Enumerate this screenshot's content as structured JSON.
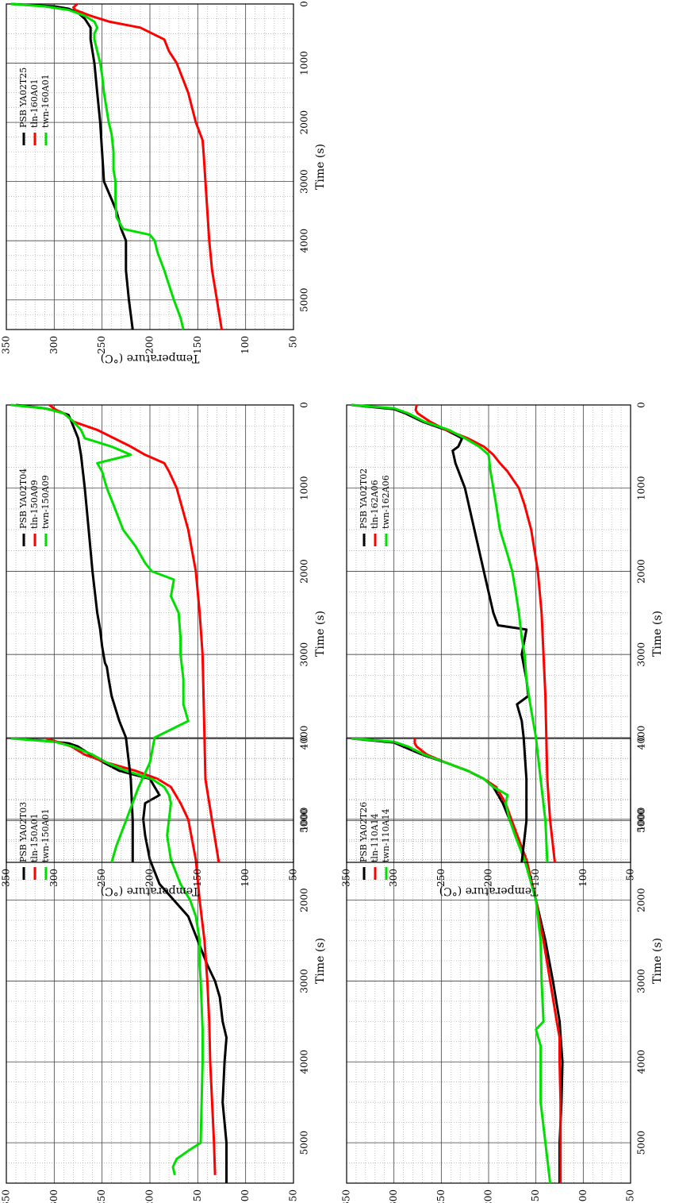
{
  "figure": {
    "colors": {
      "tln": "#ff0000",
      "PSB": "#000000",
      "twn": "#00e000"
    },
    "shared_axis_labels": {
      "xlabel": "Time (s)",
      "ylabel": "Temperature (°C)"
    }
  },
  "chart_data": [
    {
      "type": "line",
      "id": "T03",
      "xlabel": "Time (s)",
      "ylabel": "Temperature (°C)",
      "xlim": [
        0,
        5500
      ],
      "ylim": [
        50,
        350
      ],
      "grid": true,
      "legend_position": "top-right",
      "xticks": [
        "0",
        "1000",
        "2000",
        "3000",
        "4000",
        "5000"
      ],
      "yticks": [
        "350",
        "300",
        "250",
        "200",
        "150",
        "100",
        "50"
      ],
      "series": [
        {
          "name": "PSB YA02T03",
          "color": "#000000",
          "x": [
            0,
            40,
            60,
            100,
            200,
            300,
            400,
            500,
            600,
            700,
            800,
            1000,
            1200,
            1500,
            1800,
            2000,
            2200,
            2500,
            2800,
            3000,
            3200,
            3500,
            3700,
            4000,
            4500,
            5000,
            5500
          ],
          "y": [
            340,
            300,
            285,
            275,
            262,
            248,
            232,
            200,
            195,
            190,
            205,
            207,
            205,
            200,
            190,
            175,
            160,
            150,
            140,
            132,
            127,
            124,
            120,
            122,
            124,
            120,
            120
          ]
        },
        {
          "name": "tln-150A01",
          "color": "#ff0000",
          "x": [
            0,
            60,
            100,
            200,
            300,
            400,
            500,
            600,
            800,
            1000,
            1500,
            2000,
            2500,
            3000,
            3500,
            4000,
            4500,
            5000,
            5400
          ],
          "y": [
            308,
            292,
            282,
            268,
            245,
            215,
            192,
            178,
            168,
            160,
            152,
            148,
            143,
            140,
            138,
            137,
            135,
            133,
            132
          ]
        },
        {
          "name": "twn-150A01",
          "color": "#00e000",
          "x": [
            0,
            40,
            100,
            200,
            300,
            400,
            500,
            600,
            700,
            800,
            1000,
            1200,
            1500,
            1800,
            2000,
            2200,
            2500,
            2800,
            3000,
            3300,
            3600,
            4000,
            4500,
            5000,
            5100,
            5200,
            5300,
            5400
          ],
          "y": [
            345,
            300,
            280,
            260,
            245,
            225,
            198,
            185,
            180,
            178,
            180,
            182,
            178,
            168,
            158,
            152,
            148,
            148,
            147,
            146,
            145,
            145,
            146,
            147,
            160,
            172,
            176,
            174
          ]
        }
      ]
    },
    {
      "type": "line",
      "id": "T04",
      "xlabel": "Time (s)",
      "ylabel": "Temperature (°C)",
      "xlim": [
        0,
        5500
      ],
      "ylim": [
        50,
        350
      ],
      "grid": true,
      "legend_position": "top-right",
      "xticks": [
        "0",
        "1000",
        "2000",
        "3000",
        "4000",
        "5000"
      ],
      "yticks": [
        "350",
        "300",
        "250",
        "200",
        "150",
        "100",
        "50"
      ],
      "series": [
        {
          "name": "PSB YA02T04",
          "color": "#000000",
          "x": [
            0,
            40,
            80,
            120,
            200,
            400,
            600,
            1000,
            1500,
            2000,
            2500,
            2700,
            2900,
            3100,
            3150,
            3300,
            3500,
            3800,
            4000,
            4500,
            5000,
            5500
          ],
          "y": [
            340,
            310,
            295,
            285,
            282,
            275,
            272,
            268,
            264,
            260,
            255,
            252,
            250,
            247,
            245,
            243,
            240,
            232,
            225,
            220,
            218,
            218
          ]
        },
        {
          "name": "tln-150A09",
          "color": "#ff0000",
          "x": [
            0,
            60,
            100,
            200,
            300,
            500,
            600,
            700,
            800,
            1000,
            1500,
            2000,
            2500,
            3000,
            3500,
            4000,
            4500,
            5000,
            5500
          ],
          "y": [
            305,
            298,
            290,
            280,
            255,
            220,
            205,
            185,
            180,
            172,
            160,
            152,
            148,
            145,
            144,
            143,
            142,
            135,
            128
          ]
        },
        {
          "name": "twn-150A09",
          "color": "#00e000",
          "x": [
            0,
            40,
            100,
            200,
            300,
            400,
            500,
            600,
            700,
            800,
            1000,
            1200,
            1500,
            1700,
            1900,
            2000,
            2100,
            2300,
            2500,
            2800,
            3000,
            3300,
            3600,
            3800,
            4000,
            4300,
            4600,
            5000,
            5300,
            5500
          ],
          "y": [
            345,
            310,
            290,
            280,
            272,
            268,
            240,
            220,
            255,
            250,
            245,
            238,
            228,
            215,
            205,
            198,
            175,
            178,
            170,
            168,
            168,
            165,
            165,
            160,
            195,
            200,
            212,
            225,
            235,
            240
          ]
        }
      ]
    },
    {
      "type": "line",
      "id": "T25",
      "xlabel": "Time (s)",
      "ylabel": "Temperature (°C)",
      "xlim": [
        0,
        5500
      ],
      "ylim": [
        50,
        350
      ],
      "grid": true,
      "legend_position": "top-right",
      "xticks": [
        "0",
        "1000",
        "2000",
        "3000",
        "4000",
        "5000"
      ],
      "yticks": [
        "350",
        "300",
        "250",
        "200",
        "150",
        "100",
        "50"
      ],
      "series": [
        {
          "name": "PSB YA02T25",
          "color": "#000000",
          "x": [
            0,
            40,
            80,
            150,
            250,
            400,
            600,
            1000,
            1500,
            2000,
            2500,
            3000,
            3300,
            3500,
            3800,
            4000,
            4500,
            5000,
            5500
          ],
          "y": [
            345,
            300,
            285,
            275,
            268,
            262,
            262,
            258,
            255,
            252,
            250,
            248,
            240,
            235,
            230,
            225,
            225,
            222,
            218
          ]
        },
        {
          "name": "tln-160A01",
          "color": "#ff0000",
          "x": [
            0,
            60,
            100,
            200,
            300,
            400,
            600,
            800,
            1000,
            1500,
            2000,
            2300,
            2500,
            3000,
            3500,
            4000,
            4500,
            5000,
            5500
          ],
          "y": [
            276,
            280,
            278,
            262,
            242,
            210,
            185,
            180,
            172,
            160,
            152,
            145,
            144,
            142,
            140,
            138,
            135,
            130,
            125
          ]
        },
        {
          "name": "twn-160A01",
          "color": "#00e000",
          "x": [
            0,
            40,
            100,
            200,
            300,
            400,
            500,
            600,
            800,
            1000,
            1200,
            1500,
            1800,
            2000,
            2200,
            2500,
            2800,
            3000,
            3300,
            3600,
            3800,
            3900,
            4000,
            4200,
            4500,
            5000,
            5300,
            5500
          ],
          "y": [
            345,
            310,
            285,
            268,
            258,
            255,
            258,
            258,
            255,
            252,
            250,
            248,
            245,
            243,
            240,
            238,
            238,
            236,
            236,
            235,
            228,
            200,
            195,
            192,
            185,
            175,
            168,
            165
          ]
        }
      ]
    },
    {
      "type": "line",
      "id": "T26",
      "xlabel": "Time (s)",
      "ylabel": "Temperature (°C)",
      "xlim": [
        0,
        5500
      ],
      "ylim": [
        50,
        350
      ],
      "grid": true,
      "legend_position": "top-right",
      "xticks": [
        "0",
        "1000",
        "2000",
        "3000",
        "4000",
        "5000"
      ],
      "yticks": [
        "350",
        "300",
        "250",
        "200",
        "150",
        "100",
        "50"
      ],
      "series": [
        {
          "name": "PSB YA02T26",
          "color": "#000000",
          "x": [
            0,
            50,
            100,
            200,
            300,
            400,
            500,
            600,
            800,
            1000,
            1200,
            1500,
            2000,
            2500,
            3000,
            3500,
            4000,
            4500,
            5000,
            5500
          ],
          "y": [
            345,
            300,
            290,
            270,
            245,
            222,
            205,
            195,
            185,
            178,
            170,
            160,
            150,
            140,
            132,
            125,
            122,
            123,
            125,
            125
          ]
        },
        {
          "name": "tln-110A14",
          "color": "#ff0000",
          "x": [
            0,
            60,
            100,
            200,
            300,
            400,
            500,
            600,
            800,
            1000,
            1500,
            2000,
            2500,
            3000,
            3500,
            3700,
            4000,
            4500,
            5000,
            5500
          ],
          "y": [
            278,
            278,
            276,
            265,
            245,
            222,
            205,
            192,
            182,
            176,
            160,
            150,
            142,
            135,
            128,
            125,
            125,
            124,
            124,
            124
          ]
        },
        {
          "name": "twn-110A14",
          "color": "#00e000",
          "x": [
            0,
            40,
            100,
            200,
            300,
            400,
            500,
            600,
            700,
            800,
            1000,
            1200,
            1500,
            2000,
            2500,
            3000,
            3500,
            3600,
            3800,
            4000,
            4500,
            5000,
            5500
          ],
          "y": [
            345,
            300,
            285,
            268,
            245,
            222,
            205,
            195,
            180,
            182,
            178,
            172,
            162,
            150,
            145,
            144,
            142,
            150,
            145,
            145,
            145,
            140,
            135
          ]
        }
      ]
    },
    {
      "type": "line",
      "id": "T02",
      "xlabel": "Time (s)",
      "ylabel": "Temperature (°C)",
      "xlim": [
        0,
        5500
      ],
      "ylim": [
        50,
        350
      ],
      "grid": true,
      "legend_position": "top-right",
      "xticks": [
        "0",
        "1000",
        "2000",
        "3000",
        "4000",
        "5000"
      ],
      "yticks": [
        "350",
        "300",
        "250",
        "200",
        "150",
        "100",
        "50"
      ],
      "series": [
        {
          "name": "PSB YA02T02",
          "color": "#000000",
          "x": [
            0,
            50,
            100,
            200,
            300,
            400,
            500,
            550,
            700,
            1000,
            1500,
            2000,
            2500,
            2650,
            2700,
            3000,
            3300,
            3500,
            3600,
            3800,
            4000,
            4500,
            5000,
            5500
          ],
          "y": [
            345,
            300,
            288,
            270,
            245,
            228,
            232,
            238,
            235,
            225,
            215,
            205,
            195,
            190,
            160,
            165,
            160,
            158,
            170,
            165,
            163,
            160,
            160,
            165
          ]
        },
        {
          "name": "tln-162A06",
          "color": "#ff0000",
          "x": [
            0,
            60,
            100,
            200,
            300,
            400,
            500,
            600,
            700,
            800,
            1000,
            1200,
            1500,
            2000,
            2500,
            3000,
            3500,
            4000,
            4500,
            5000,
            5500
          ],
          "y": [
            276,
            277,
            275,
            262,
            245,
            222,
            205,
            195,
            188,
            180,
            168,
            162,
            155,
            148,
            144,
            142,
            140,
            139,
            138,
            135,
            130
          ]
        },
        {
          "name": "twn-162A06",
          "color": "#00e000",
          "x": [
            0,
            40,
            100,
            200,
            300,
            400,
            500,
            600,
            800,
            1000,
            1200,
            1500,
            1800,
            2000,
            2200,
            2500,
            2800,
            3000,
            3300,
            3600,
            4000,
            4500,
            5000,
            5500
          ],
          "y": [
            345,
            300,
            285,
            268,
            242,
            225,
            210,
            200,
            198,
            195,
            192,
            188,
            180,
            175,
            172,
            168,
            165,
            162,
            160,
            156,
            150,
            145,
            140,
            138
          ]
        }
      ]
    }
  ]
}
